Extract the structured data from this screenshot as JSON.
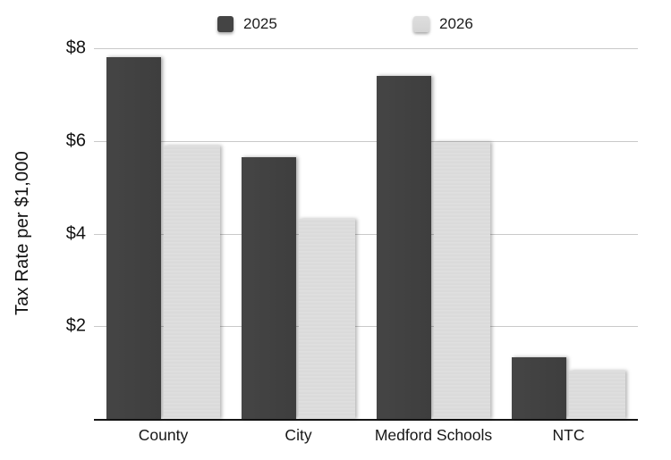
{
  "chart_data": {
    "type": "bar",
    "title": "",
    "xlabel": "",
    "ylabel": "Tax Rate per $1,000",
    "categories": [
      "County",
      "City",
      "Medford Schools",
      "NTC"
    ],
    "series": [
      {
        "name": "2025",
        "color": "#424242",
        "values": [
          7.8,
          5.65,
          7.4,
          1.33
        ]
      },
      {
        "name": "2026",
        "color": "#dcdcdc",
        "values": [
          5.9,
          4.32,
          5.98,
          1.04
        ]
      }
    ],
    "ylim": [
      0,
      8
    ],
    "yticks": [
      "$2",
      "$4",
      "$6",
      "$8"
    ],
    "ytick_values": [
      2,
      4,
      6,
      8
    ],
    "grid": true,
    "legend_position": "top"
  },
  "colors": {
    "series_2025": "#424242",
    "series_2026": "#dcdcdc",
    "gridline": "#c9c9c9",
    "axis_line": "#161616",
    "text": "#1a1a1a",
    "background": "#ffffff"
  }
}
